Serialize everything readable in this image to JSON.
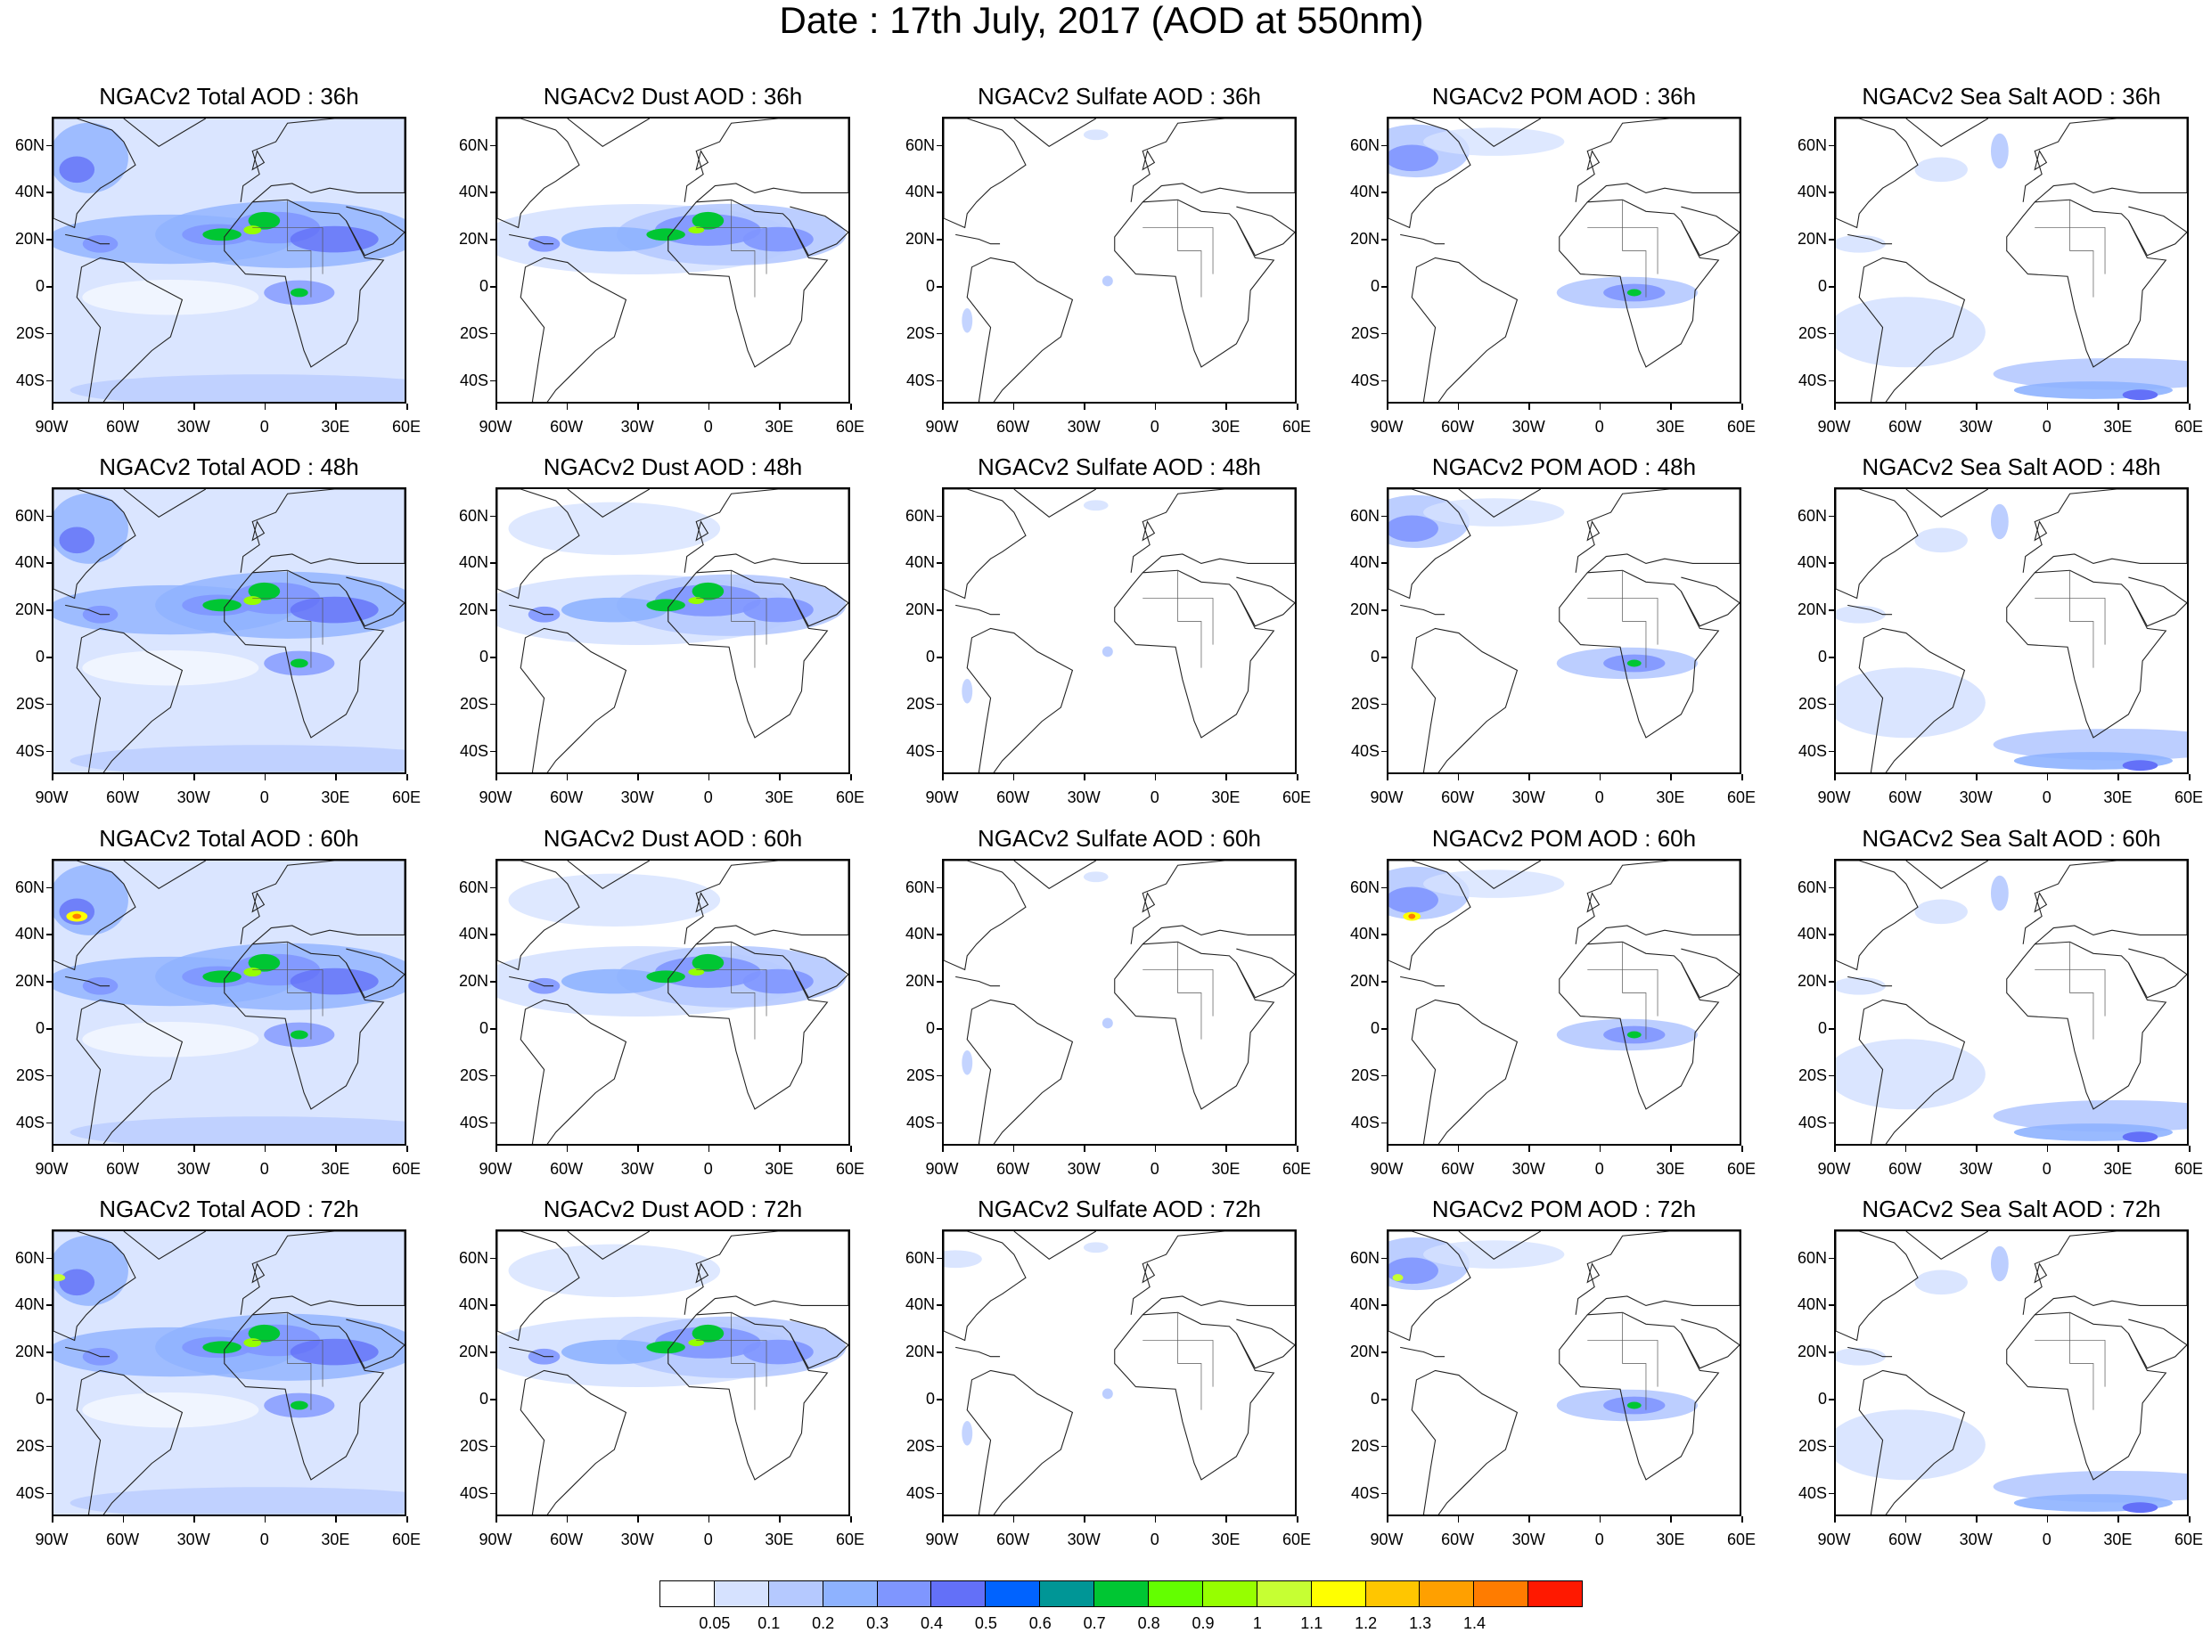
{
  "title": "Date : 17th July, 2017 (AOD at 550nm)",
  "rows": [
    {
      "panels": [
        "NGACv2 Total AOD : 36h",
        "NGACv2 Dust AOD : 36h",
        "NGACv2 Sulfate AOD : 36h",
        "NGACv2 POM AOD : 36h",
        "NGACv2 Sea Salt AOD : 36h"
      ]
    },
    {
      "panels": [
        "NGACv2 Total AOD : 48h",
        "NGACv2 Dust AOD : 48h",
        "NGACv2 Sulfate AOD : 48h",
        "NGACv2 POM AOD : 48h",
        "NGACv2 Sea Salt AOD : 48h"
      ]
    },
    {
      "panels": [
        "NGACv2 Total AOD : 60h",
        "NGACv2 Dust AOD : 60h",
        "NGACv2 Sulfate AOD : 60h",
        "NGACv2 POM AOD : 60h",
        "NGACv2 Sea Salt AOD : 60h"
      ]
    },
    {
      "panels": [
        "NGACv2 Total AOD : 72h",
        "NGACv2 Dust AOD : 72h",
        "NGACv2 Sulfate AOD : 72h",
        "NGACv2 POM AOD : 72h",
        "NGACv2 Sea Salt  AOD : 72h"
      ]
    }
  ],
  "lat_ticks": [
    "60N",
    "40N",
    "20N",
    "0",
    "20S",
    "40S"
  ],
  "lon_ticks": [
    "90W",
    "60W",
    "30W",
    "0",
    "30E",
    "60E"
  ],
  "colorbar": {
    "labels": [
      "0.05",
      "0.1",
      "0.2",
      "0.3",
      "0.4",
      "0.5",
      "0.6",
      "0.7",
      "0.8",
      "0.9",
      "1",
      "1.1",
      "1.2",
      "1.3",
      "1.4"
    ],
    "colors": [
      "#ffffff",
      "#d6e2ff",
      "#b5c9ff",
      "#8eb2ff",
      "#7f96ff",
      "#6370f8",
      "#0063ff",
      "#009696",
      "#00c633",
      "#63ff00",
      "#96ff00",
      "#c6ff33",
      "#ffff00",
      "#ffc600",
      "#ffa000",
      "#ff7c00",
      "#ff1900"
    ]
  }
}
